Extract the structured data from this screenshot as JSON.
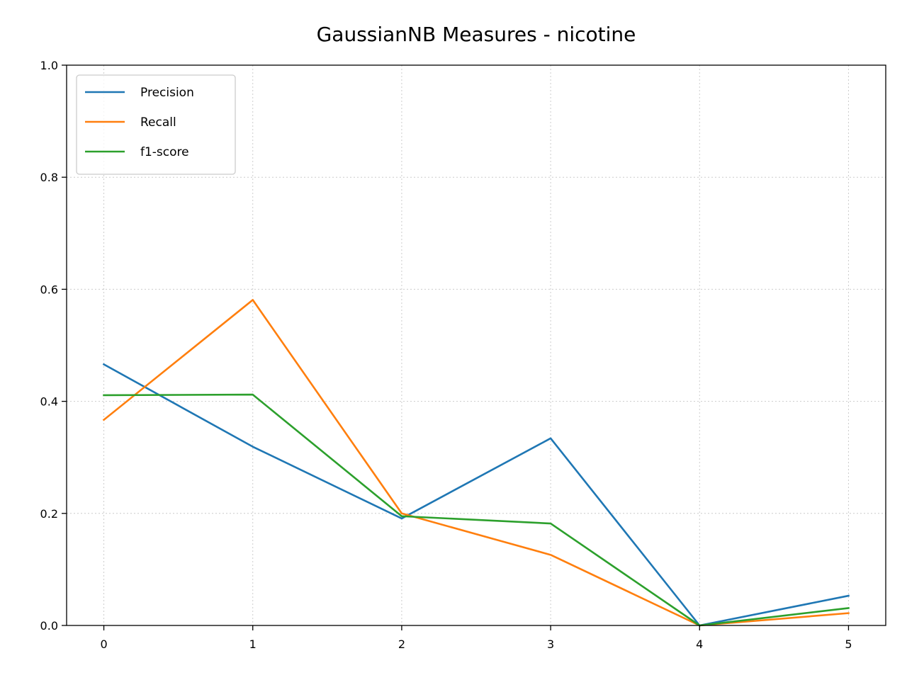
{
  "chart_data": {
    "type": "line",
    "title": "GaussianNB Measures - nicotine",
    "xlabel": "",
    "ylabel": "",
    "x": [
      0,
      1,
      2,
      3,
      4,
      5
    ],
    "xlim": [
      -0.25,
      5.25
    ],
    "ylim": [
      0.0,
      1.0
    ],
    "xticks": [
      "0",
      "1",
      "2",
      "3",
      "4",
      "5"
    ],
    "yticks": [
      "0.0",
      "0.2",
      "0.4",
      "0.6",
      "0.8",
      "1.0"
    ],
    "grid": true,
    "legend_position": "top-left",
    "series": [
      {
        "name": "Precision",
        "color": "#1f77b4",
        "values": [
          0.466,
          0.319,
          0.191,
          0.334,
          0.0,
          0.053
        ]
      },
      {
        "name": "Recall",
        "color": "#ff7f0e",
        "values": [
          0.367,
          0.581,
          0.2,
          0.126,
          0.0,
          0.022
        ]
      },
      {
        "name": "f1-score",
        "color": "#2ca02c",
        "values": [
          0.411,
          0.412,
          0.195,
          0.182,
          0.0,
          0.031
        ]
      }
    ]
  }
}
